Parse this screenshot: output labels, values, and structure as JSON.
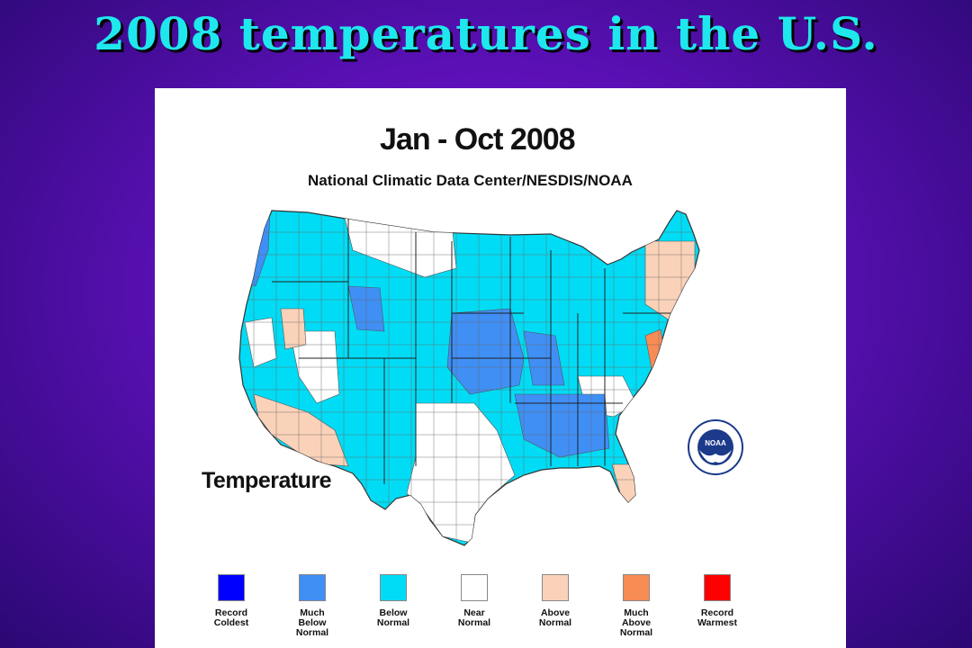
{
  "slide": {
    "title": "2008 temperatures in the U.S."
  },
  "map": {
    "title": "Jan - Oct 2008",
    "subtitle": "National Climatic Data Center/NESDIS/NOAA",
    "variable_label": "Temperature",
    "logo_text": "NOAA",
    "logo_icon": "noaa-logo-icon",
    "dominant_category": "Below Normal",
    "notable_regions": [
      {
        "region": "Southwest (California/Arizona)",
        "category": "Above Normal"
      },
      {
        "region": "Northeast",
        "category": "Above Normal"
      },
      {
        "region": "Virginia coast",
        "category": "Much Above Normal"
      },
      {
        "region": "Florida",
        "category": "Above Normal"
      },
      {
        "region": "Central Plains / Midwest",
        "category": "Much Below Normal"
      },
      {
        "region": "Pacific Northwest coast",
        "category": "Much Below Normal"
      },
      {
        "region": "Texas",
        "category": "Near Normal"
      }
    ]
  },
  "legend": [
    {
      "label": "Record\nColdest",
      "color": "#0000ff"
    },
    {
      "label": "Much\nBelow\nNormal",
      "color": "#3f8ff5"
    },
    {
      "label": "Below\nNormal",
      "color": "#00dcf5"
    },
    {
      "label": "Near\nNormal",
      "color": "#ffffff"
    },
    {
      "label": "Above\nNormal",
      "color": "#fad2b9"
    },
    {
      "label": "Much\nAbove\nNormal",
      "color": "#f78c55"
    },
    {
      "label": "Record\nWarmest",
      "color": "#ff0000"
    }
  ]
}
